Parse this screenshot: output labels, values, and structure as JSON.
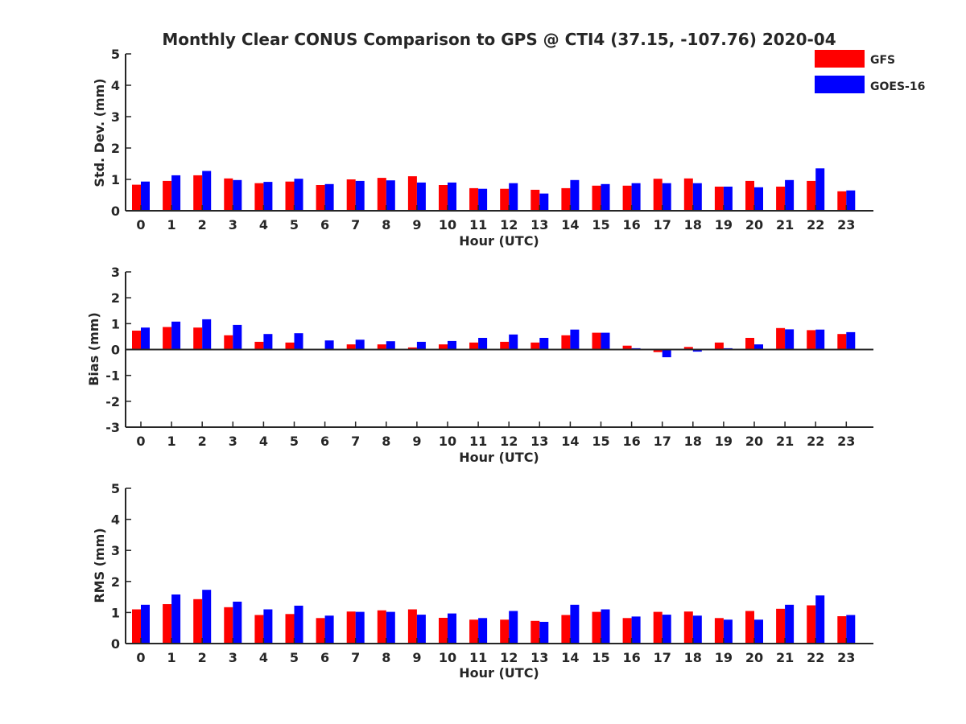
{
  "figure": {
    "title": "Monthly Clear CONUS Comparison to GPS @ CTI4 (37.15, -107.76) 2020-04"
  },
  "colors": {
    "gfs": "#ff0000",
    "goes": "#0000ff",
    "axis": "#262626"
  },
  "legend": {
    "placement": "top-right",
    "items": [
      {
        "label": "GFS",
        "color": "#ff0000"
      },
      {
        "label": "GOES-16",
        "color": "#0000ff"
      }
    ]
  },
  "chart_data": [
    {
      "type": "bar",
      "ylabel": "Std. Dev. (mm)",
      "xlabel": "Hour (UTC)",
      "ylim": [
        0,
        5
      ],
      "yticks": [
        "0",
        "1",
        "2",
        "3",
        "4",
        "5"
      ],
      "categories": [
        "0",
        "1",
        "2",
        "3",
        "4",
        "5",
        "6",
        "7",
        "8",
        "9",
        "10",
        "11",
        "12",
        "13",
        "14",
        "15",
        "16",
        "17",
        "18",
        "19",
        "20",
        "21",
        "22",
        "23"
      ],
      "series": [
        {
          "name": "GFS",
          "values": [
            0.83,
            0.95,
            1.13,
            1.03,
            0.88,
            0.93,
            0.82,
            1.0,
            1.05,
            1.1,
            0.82,
            0.72,
            0.7,
            0.67,
            0.72,
            0.8,
            0.8,
            1.02,
            1.03,
            0.77,
            0.95,
            0.77,
            0.95,
            0.62
          ]
        },
        {
          "name": "GOES-16",
          "values": [
            0.93,
            1.13,
            1.27,
            0.98,
            0.92,
            1.02,
            0.85,
            0.95,
            0.97,
            0.9,
            0.9,
            0.7,
            0.88,
            0.55,
            0.98,
            0.85,
            0.88,
            0.88,
            0.88,
            0.77,
            0.75,
            0.98,
            1.35,
            0.65
          ]
        }
      ]
    },
    {
      "type": "bar",
      "ylabel": "Bias (mm)",
      "xlabel": "Hour (UTC)",
      "ylim": [
        -3,
        3
      ],
      "yticks": [
        "-3",
        "-2",
        "-1",
        "0",
        "1",
        "2",
        "3"
      ],
      "categories": [
        "0",
        "1",
        "2",
        "3",
        "4",
        "5",
        "6",
        "7",
        "8",
        "9",
        "10",
        "11",
        "12",
        "13",
        "14",
        "15",
        "16",
        "17",
        "18",
        "19",
        "20",
        "21",
        "22",
        "23"
      ],
      "series": [
        {
          "name": "GFS",
          "values": [
            0.73,
            0.87,
            0.85,
            0.55,
            0.3,
            0.27,
            0.03,
            0.2,
            0.2,
            0.08,
            0.2,
            0.27,
            0.3,
            0.27,
            0.55,
            0.65,
            0.15,
            -0.1,
            0.1,
            0.27,
            0.45,
            0.83,
            0.75,
            0.6
          ]
        },
        {
          "name": "GOES-16",
          "values": [
            0.85,
            1.08,
            1.17,
            0.95,
            0.6,
            0.63,
            0.35,
            0.38,
            0.32,
            0.3,
            0.33,
            0.45,
            0.58,
            0.45,
            0.77,
            0.65,
            0.05,
            -0.3,
            -0.08,
            0.05,
            0.2,
            0.78,
            0.77,
            0.67
          ]
        }
      ]
    },
    {
      "type": "bar",
      "ylabel": "RMS (mm)",
      "xlabel": "Hour (UTC)",
      "ylim": [
        0,
        5
      ],
      "yticks": [
        "0",
        "1",
        "2",
        "3",
        "4",
        "5"
      ],
      "categories": [
        "0",
        "1",
        "2",
        "3",
        "4",
        "5",
        "6",
        "7",
        "8",
        "9",
        "10",
        "11",
        "12",
        "13",
        "14",
        "15",
        "16",
        "17",
        "18",
        "19",
        "20",
        "21",
        "22",
        "23"
      ],
      "series": [
        {
          "name": "GFS",
          "values": [
            1.1,
            1.27,
            1.43,
            1.17,
            0.92,
            0.95,
            0.82,
            1.03,
            1.07,
            1.1,
            0.83,
            0.77,
            0.77,
            0.73,
            0.92,
            1.02,
            0.82,
            1.02,
            1.03,
            0.82,
            1.05,
            1.12,
            1.23,
            0.88
          ]
        },
        {
          "name": "GOES-16",
          "values": [
            1.25,
            1.58,
            1.73,
            1.35,
            1.1,
            1.22,
            0.9,
            1.02,
            1.02,
            0.93,
            0.97,
            0.82,
            1.05,
            0.7,
            1.25,
            1.1,
            0.87,
            0.93,
            0.9,
            0.77,
            0.77,
            1.25,
            1.55,
            0.92
          ]
        }
      ]
    }
  ]
}
